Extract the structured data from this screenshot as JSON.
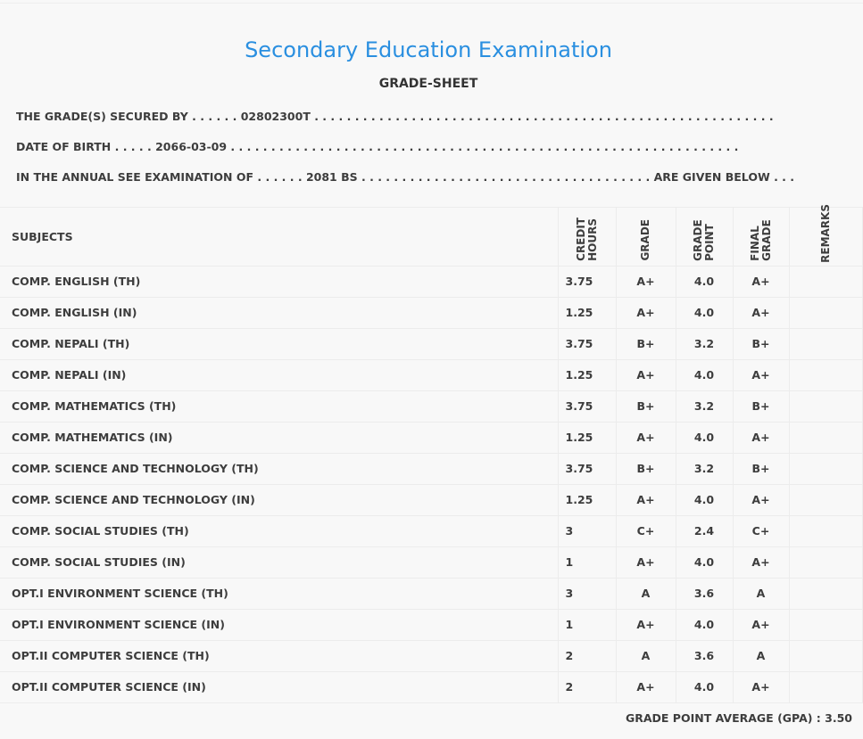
{
  "header": {
    "title": "Secondary Education Examination",
    "subtitle": "GRADE-SHEET"
  },
  "info": {
    "secured_by": "THE GRADE(S) SECURED BY . . . . . . 02802300T . . . . . . . . . . . . . . . . . . . . . . . . . . . . . . . . . . . . . . . . . . . . . . . . . . . . . . . . .",
    "dob": "DATE OF BIRTH . . . . . 2066-03-09 . . . . . . . . . . . . . . . . . . . . . . . . . . . . . . . . . . . . . . . . . . . . . . . . . . . . . . . . . . . . . . .",
    "exam": "IN THE ANNUAL SEE EXAMINATION OF . . . . . . 2081 BS . . . . . . . . . . . . . . . . . . . . . . . . . . . . . . . . . . . . ARE GIVEN BELOW . . ."
  },
  "table": {
    "headers": {
      "subjects": "SUBJECTS",
      "credit_hours": "CREDIT HOURS",
      "grade": "GRADE",
      "grade_point": "GRADE POINT",
      "final_grade": "FINAL GRADE",
      "remarks": "REMARKS"
    },
    "rows": [
      {
        "subject": "COMP. ENGLISH (TH)",
        "credit": "3.75",
        "grade": "A+",
        "gp": "4.0",
        "final": "A+"
      },
      {
        "subject": "COMP. ENGLISH (IN)",
        "credit": "1.25",
        "grade": "A+",
        "gp": "4.0",
        "final": "A+"
      },
      {
        "subject": "COMP. NEPALI (TH)",
        "credit": "3.75",
        "grade": "B+",
        "gp": "3.2",
        "final": "B+"
      },
      {
        "subject": "COMP. NEPALI (IN)",
        "credit": "1.25",
        "grade": "A+",
        "gp": "4.0",
        "final": "A+"
      },
      {
        "subject": "COMP. MATHEMATICS (TH)",
        "credit": "3.75",
        "grade": "B+",
        "gp": "3.2",
        "final": "B+"
      },
      {
        "subject": "COMP. MATHEMATICS (IN)",
        "credit": "1.25",
        "grade": "A+",
        "gp": "4.0",
        "final": "A+"
      },
      {
        "subject": "COMP. SCIENCE AND TECHNOLOGY (TH)",
        "credit": "3.75",
        "grade": "B+",
        "gp": "3.2",
        "final": "B+"
      },
      {
        "subject": "COMP. SCIENCE AND TECHNOLOGY (IN)",
        "credit": "1.25",
        "grade": "A+",
        "gp": "4.0",
        "final": "A+"
      },
      {
        "subject": "COMP. SOCIAL STUDIES (TH)",
        "credit": "3",
        "grade": "C+",
        "gp": "2.4",
        "final": "C+"
      },
      {
        "subject": "COMP. SOCIAL STUDIES (IN)",
        "credit": "1",
        "grade": "A+",
        "gp": "4.0",
        "final": "A+"
      },
      {
        "subject": "OPT.I ENVIRONMENT SCIENCE (TH)",
        "credit": "3",
        "grade": "A",
        "gp": "3.6",
        "final": "A"
      },
      {
        "subject": "OPT.I ENVIRONMENT SCIENCE (IN)",
        "credit": "1",
        "grade": "A+",
        "gp": "4.0",
        "final": "A+"
      },
      {
        "subject": "OPT.II COMPUTER SCIENCE (TH)",
        "credit": "2",
        "grade": "A",
        "gp": "3.6",
        "final": "A"
      },
      {
        "subject": "OPT.II COMPUTER SCIENCE (IN)",
        "credit": "2",
        "grade": "A+",
        "gp": "4.0",
        "final": "A+"
      }
    ]
  },
  "gpa": "GRADE POINT AVERAGE (GPA) : 3.50"
}
